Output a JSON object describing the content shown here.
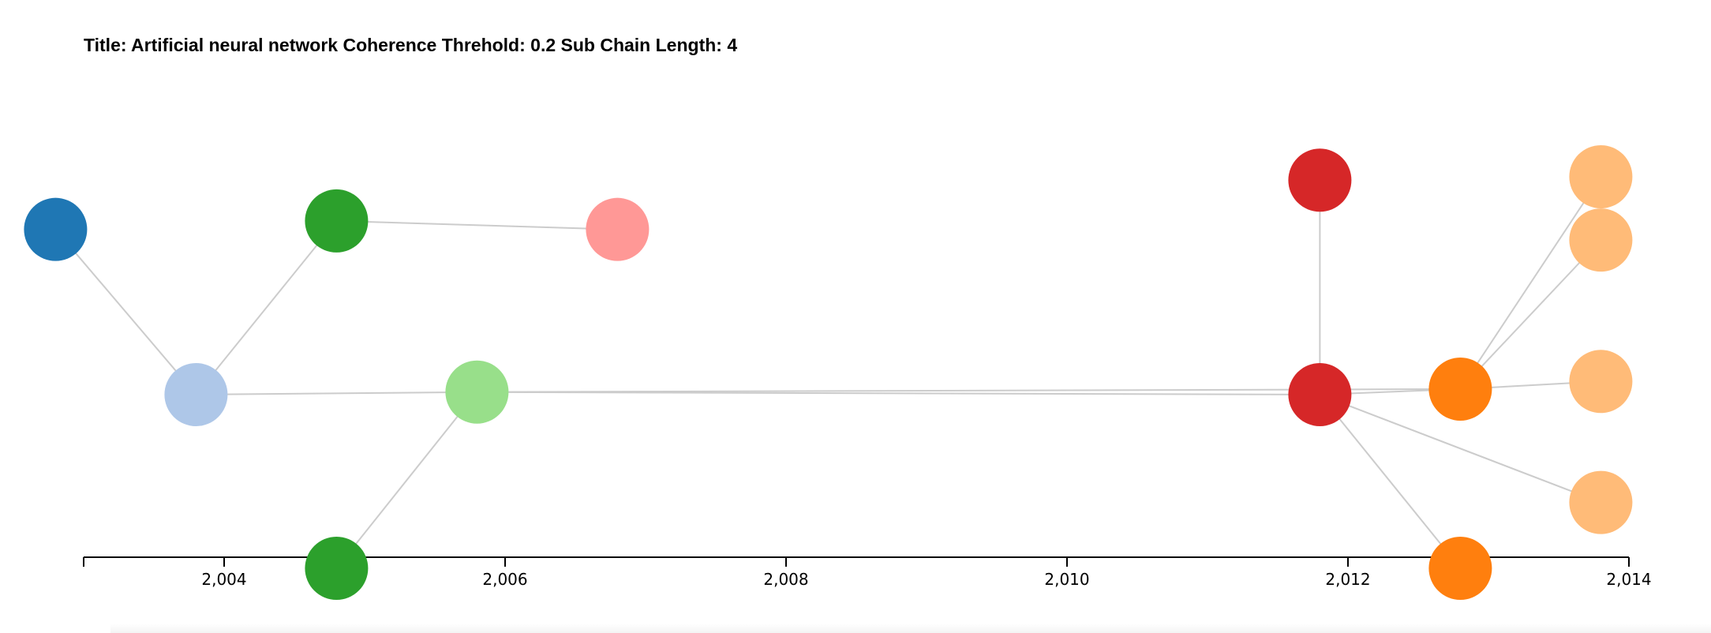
{
  "header": {
    "title": "Title: Artificial neural network Coherence Threhold: 0.2 Sub Chain Length: 4"
  },
  "chart_data": {
    "type": "network-timeline",
    "xlim": [
      2003,
      2014
    ],
    "xticks": [
      2004,
      2006,
      2008,
      2010,
      2012,
      2014
    ],
    "xtick_labels": [
      "2,004",
      "2,006",
      "2,008",
      "2,010",
      "2,012",
      "2,014"
    ],
    "grid": false,
    "nodes": [
      {
        "id": "n1",
        "x": 2002.8,
        "y": 0.798,
        "color": "#1f77b4"
      },
      {
        "id": "n2",
        "x": 2003.8,
        "y": 0.409,
        "color": "#aec7e8"
      },
      {
        "id": "n3",
        "x": 2004.8,
        "y": 0.818,
        "color": "#2ca02c"
      },
      {
        "id": "n4",
        "x": 2004.8,
        "y": 0.0,
        "color": "#2ca02c"
      },
      {
        "id": "n5",
        "x": 2005.8,
        "y": 0.415,
        "color": "#98df8a"
      },
      {
        "id": "n6",
        "x": 2006.8,
        "y": 0.798,
        "color": "#ff9896"
      },
      {
        "id": "n7",
        "x": 2011.8,
        "y": 0.914,
        "color": "#d62728"
      },
      {
        "id": "n8",
        "x": 2011.8,
        "y": 0.409,
        "color": "#d62728"
      },
      {
        "id": "n9",
        "x": 2012.8,
        "y": 0.422,
        "color": "#ff7f0e"
      },
      {
        "id": "n10",
        "x": 2012.8,
        "y": 0.0,
        "color": "#ff7f0e"
      },
      {
        "id": "n11",
        "x": 2013.8,
        "y": 0.922,
        "color": "#ffbb78"
      },
      {
        "id": "n12",
        "x": 2013.8,
        "y": 0.773,
        "color": "#ffbb78"
      },
      {
        "id": "n13",
        "x": 2013.8,
        "y": 0.44,
        "color": "#ffbb78"
      },
      {
        "id": "n14",
        "x": 2013.8,
        "y": 0.155,
        "color": "#ffbb78"
      }
    ],
    "edges": [
      [
        "n1",
        "n2"
      ],
      [
        "n2",
        "n3"
      ],
      [
        "n2",
        "n5"
      ],
      [
        "n3",
        "n6"
      ],
      [
        "n4",
        "n5"
      ],
      [
        "n5",
        "n8"
      ],
      [
        "n5",
        "n9"
      ],
      [
        "n7",
        "n8"
      ],
      [
        "n8",
        "n9"
      ],
      [
        "n8",
        "n10"
      ],
      [
        "n8",
        "n14"
      ],
      [
        "n9",
        "n11"
      ],
      [
        "n9",
        "n12"
      ],
      [
        "n9",
        "n13"
      ]
    ]
  }
}
